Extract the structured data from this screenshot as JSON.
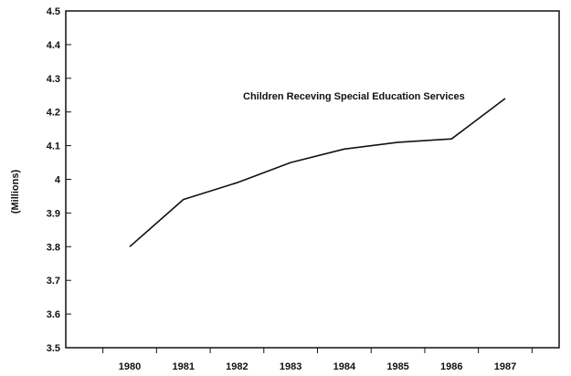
{
  "chart_data": {
    "type": "line",
    "title": "",
    "xlabel": "",
    "ylabel": "(Millions)",
    "x": [
      "1980",
      "1981",
      "1982",
      "1983",
      "1984",
      "1985",
      "1986",
      "1987"
    ],
    "series": [
      {
        "name": "Children Receving Special Education Services",
        "values": [
          3.8,
          3.94,
          3.99,
          4.05,
          4.09,
          4.11,
          4.12,
          4.24
        ]
      }
    ],
    "ylim": [
      3.5,
      4.5
    ],
    "yticks": [
      "3.5",
      "3.6",
      "3.7",
      "3.8",
      "3.9",
      "4",
      "4.1",
      "4.2",
      "4.3",
      "4.4",
      "4.5"
    ],
    "annotation": "Children Receving Special Education Services",
    "grid": false,
    "line_color": "#111111"
  }
}
